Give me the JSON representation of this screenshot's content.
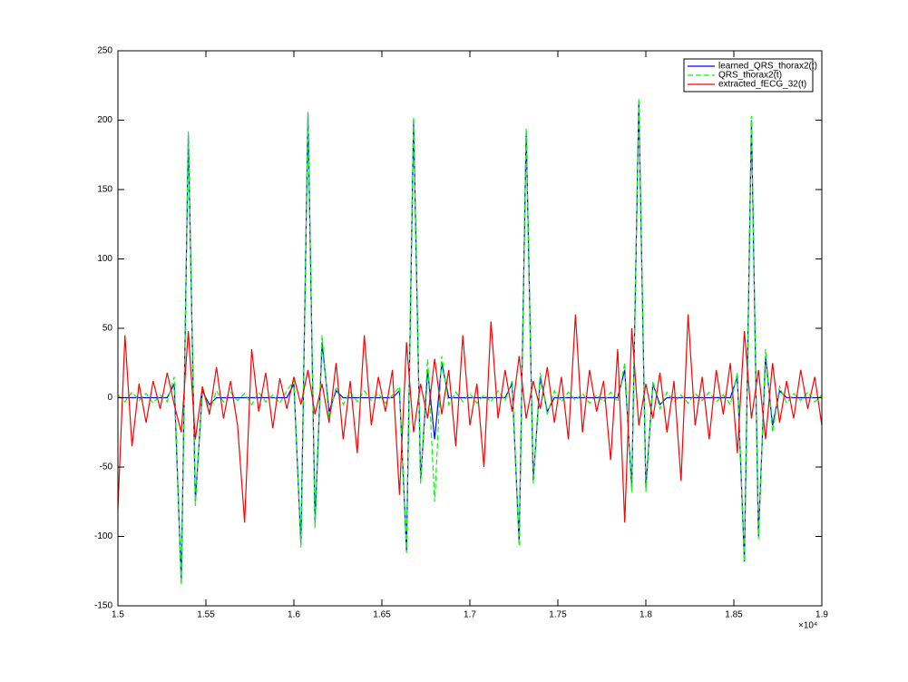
{
  "chart_data": {
    "type": "line",
    "x": [
      15000,
      15040,
      15080,
      15120,
      15160,
      15200,
      15240,
      15280,
      15320,
      15360,
      15400,
      15440,
      15480,
      15520,
      15560,
      15600,
      15640,
      15680,
      15720,
      15760,
      15800,
      15840,
      15880,
      15920,
      15960,
      16000,
      16040,
      16080,
      16120,
      16160,
      16200,
      16240,
      16280,
      16320,
      16360,
      16400,
      16440,
      16480,
      16520,
      16560,
      16600,
      16640,
      16680,
      16720,
      16760,
      16800,
      16840,
      16880,
      16920,
      16960,
      17000,
      17040,
      17080,
      17120,
      17160,
      17200,
      17240,
      17280,
      17320,
      17360,
      17400,
      17440,
      17480,
      17520,
      17560,
      17600,
      17640,
      17680,
      17720,
      17760,
      17800,
      17840,
      17880,
      17920,
      17960,
      18000,
      18040,
      18080,
      18120,
      18160,
      18200,
      18240,
      18280,
      18320,
      18360,
      18400,
      18440,
      18480,
      18520,
      18560,
      18600,
      18640,
      18680,
      18720,
      18760,
      18800,
      18840,
      18880,
      18920,
      18960,
      19000
    ],
    "series": [
      {
        "name": "learned_QRS_thorax2(t)",
        "color": "#0000ff",
        "dashed": false,
        "values": [
          0,
          0,
          0,
          0,
          0,
          0,
          0,
          0,
          10,
          -133,
          190,
          -75,
          5,
          -5,
          0,
          0,
          0,
          0,
          0,
          0,
          0,
          0,
          0,
          0,
          0,
          10,
          -106,
          205,
          -90,
          40,
          -10,
          5,
          0,
          0,
          0,
          0,
          0,
          0,
          0,
          0,
          5,
          -110,
          200,
          -60,
          20,
          -30,
          25,
          0,
          0,
          0,
          0,
          0,
          0,
          0,
          0,
          0,
          10,
          -105,
          192,
          -60,
          15,
          -10,
          0,
          0,
          0,
          0,
          0,
          0,
          0,
          0,
          0,
          0,
          20,
          -65,
          213,
          -65,
          10,
          -5,
          0,
          0,
          0,
          0,
          0,
          0,
          0,
          0,
          0,
          0,
          15,
          -118,
          200,
          -100,
          30,
          -20,
          5,
          0,
          0,
          0,
          0,
          0,
          0
        ]
      },
      {
        "name": "QRS_thorax2(t)",
        "color": "#00ff00",
        "dashed": true,
        "values": [
          2,
          -3,
          4,
          -2,
          3,
          -4,
          2,
          -3,
          15,
          -135,
          192,
          -78,
          8,
          -10,
          5,
          -3,
          4,
          -2,
          3,
          -5,
          4,
          -3,
          2,
          -4,
          5,
          12,
          -108,
          206,
          -94,
          45,
          -15,
          8,
          -5,
          4,
          -3,
          5,
          -2,
          3,
          -4,
          2,
          8,
          -112,
          202,
          -62,
          28,
          -75,
          30,
          -5,
          4,
          -3,
          3,
          -4,
          2,
          -3,
          5,
          -2,
          12,
          -107,
          194,
          -62,
          18,
          -12,
          5,
          -3,
          4,
          -2,
          3,
          -4,
          2,
          -3,
          4,
          -3,
          25,
          -68,
          216,
          -68,
          12,
          -8,
          4,
          -3,
          2,
          -4,
          3,
          -2,
          4,
          -3,
          2,
          -5,
          18,
          -118,
          203,
          -102,
          35,
          -25,
          8,
          -4,
          3,
          -2,
          4,
          -3,
          2
        ]
      },
      {
        "name": "extracted_fECG_32(t)",
        "color": "#ff0000",
        "dashed": false,
        "values": [
          -80,
          45,
          -35,
          10,
          -18,
          12,
          -8,
          18,
          -5,
          -25,
          48,
          -30,
          8,
          -12,
          22,
          -15,
          12,
          -20,
          -90,
          35,
          -10,
          18,
          -22,
          14,
          -8,
          15,
          -5,
          20,
          -12,
          10,
          -18,
          25,
          -30,
          12,
          -40,
          45,
          -20,
          15,
          -10,
          20,
          -70,
          40,
          -25,
          10,
          -15,
          28,
          -12,
          20,
          -35,
          45,
          -20,
          10,
          -50,
          55,
          -15,
          20,
          -10,
          30,
          -15,
          12,
          -8,
          22,
          -18,
          15,
          -30,
          60,
          -25,
          20,
          -10,
          12,
          -45,
          35,
          -90,
          50,
          -20,
          10,
          -15,
          18,
          -25,
          12,
          -60,
          60,
          -20,
          15,
          -30,
          20,
          -12,
          25,
          -40,
          48,
          -15,
          20,
          -30,
          25,
          -18,
          12,
          -15,
          20,
          -8,
          15,
          -20
        ]
      }
    ],
    "xlim": [
      15000,
      19000
    ],
    "xticks": [
      {
        "value": 15000,
        "label": "1.5"
      },
      {
        "value": 15500,
        "label": "1.55"
      },
      {
        "value": 16000,
        "label": "1.6"
      },
      {
        "value": 16500,
        "label": "1.65"
      },
      {
        "value": 17000,
        "label": "1.7"
      },
      {
        "value": 17500,
        "label": "1.75"
      },
      {
        "value": 18000,
        "label": "1.8"
      },
      {
        "value": 18500,
        "label": "1.85"
      },
      {
        "value": 19000,
        "label": "1.9"
      }
    ],
    "x_exponent_label": "×10⁴",
    "ylim": [
      -150,
      250
    ],
    "yticks": [
      -150,
      -100,
      -50,
      0,
      50,
      100,
      150,
      200,
      250
    ],
    "grid": false,
    "legend": "northeast"
  }
}
